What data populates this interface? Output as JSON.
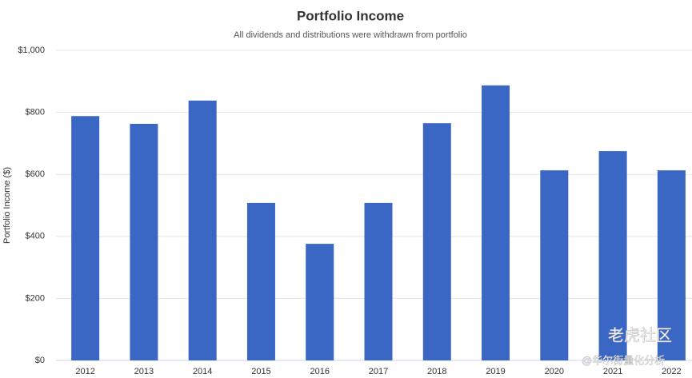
{
  "chart_data": {
    "type": "bar",
    "title": "Portfolio Income",
    "subtitle": "All dividends and distributions were withdrawn from portfolio",
    "y_label": "Portfolio Income ($)",
    "categories": [
      "2012",
      "2013",
      "2014",
      "2015",
      "2016",
      "2017",
      "2018",
      "2019",
      "2020",
      "2021",
      "2022"
    ],
    "values": [
      788,
      763,
      838,
      508,
      376,
      508,
      765,
      887,
      613,
      675,
      613
    ],
    "color": "#3a66c4",
    "ylim": [
      0,
      1000
    ],
    "yticks": [
      {
        "value": 0,
        "label": "$0"
      },
      {
        "value": 200,
        "label": "$200"
      },
      {
        "value": 400,
        "label": "$400"
      },
      {
        "value": 600,
        "label": "$600"
      },
      {
        "value": 800,
        "label": "$800"
      },
      {
        "value": 1000,
        "label": "$1,000"
      }
    ],
    "grid": true
  },
  "watermark": {
    "brand": "老虎社区",
    "handle": "@华尔街量化分析"
  }
}
